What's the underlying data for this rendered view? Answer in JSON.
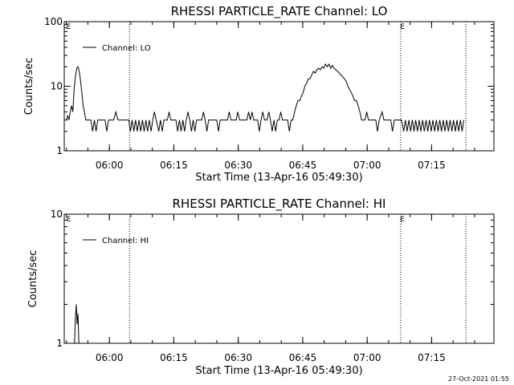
{
  "footer_timestamp": "27-Oct-2021 01:55",
  "chart_data": [
    {
      "type": "line",
      "title": "RHESSI PARTICLE_RATE Channel: LO",
      "xlabel": "Start Time (13-Apr-16 05:49:30)",
      "ylabel": "Counts/sec",
      "yscale": "log",
      "ylim": [
        1,
        100
      ],
      "yticks": [
        "1",
        "10",
        "100"
      ],
      "xlim_minutes": [
        0,
        100
      ],
      "xticks": [
        {
          "label": "06:00",
          "t": 10.5
        },
        {
          "label": "06:15",
          "t": 25.5
        },
        {
          "label": "06:30",
          "t": 40.5
        },
        {
          "label": "06:45",
          "t": 55.5
        },
        {
          "label": "07:00",
          "t": 70.5
        },
        {
          "label": "07:15",
          "t": 85.5
        }
      ],
      "eclipse_marks": [
        {
          "label": "E",
          "t": 0.3
        },
        {
          "label": "E",
          "t": 78.0
        }
      ],
      "dotted_lines_t": [
        15.2,
        78.3,
        93.5
      ],
      "legend": "Channel: LO",
      "series": [
        {
          "name": "Channel: LO",
          "points": [
            [
              0.5,
              3
            ],
            [
              0.8,
              3.5
            ],
            [
              1.1,
              3
            ],
            [
              1.4,
              4
            ],
            [
              1.7,
              5
            ],
            [
              2.0,
              4
            ],
            [
              2.3,
              9
            ],
            [
              2.6,
              14
            ],
            [
              2.9,
              19
            ],
            [
              3.2,
              20
            ],
            [
              3.5,
              17
            ],
            [
              3.8,
              12
            ],
            [
              4.1,
              8
            ],
            [
              4.4,
              5
            ],
            [
              4.7,
              4
            ],
            [
              5.0,
              3
            ],
            [
              5.6,
              3
            ],
            [
              6.2,
              3
            ],
            [
              6.6,
              2
            ],
            [
              7.0,
              3
            ],
            [
              7.4,
              2
            ],
            [
              7.8,
              3
            ],
            [
              9.5,
              3
            ],
            [
              9.9,
              2
            ],
            [
              10.3,
              3
            ],
            [
              11.5,
              3
            ],
            [
              12.0,
              4
            ],
            [
              12.5,
              3
            ],
            [
              15.0,
              3
            ],
            [
              15.4,
              2
            ],
            [
              15.8,
              3
            ],
            [
              16.2,
              2
            ],
            [
              16.6,
              3
            ],
            [
              17.0,
              2
            ],
            [
              17.4,
              3
            ],
            [
              17.8,
              2
            ],
            [
              18.2,
              3
            ],
            [
              18.6,
              2
            ],
            [
              19.0,
              3
            ],
            [
              19.4,
              2
            ],
            [
              19.8,
              3
            ],
            [
              20.2,
              2
            ],
            [
              20.6,
              3
            ],
            [
              21.0,
              4
            ],
            [
              21.4,
              3
            ],
            [
              22.0,
              2
            ],
            [
              22.4,
              3
            ],
            [
              22.8,
              2
            ],
            [
              23.2,
              3
            ],
            [
              24.0,
              3
            ],
            [
              24.4,
              4
            ],
            [
              24.8,
              3
            ],
            [
              26.0,
              3
            ],
            [
              26.4,
              2
            ],
            [
              26.8,
              3
            ],
            [
              27.2,
              2
            ],
            [
              27.6,
              3
            ],
            [
              28.0,
              2
            ],
            [
              28.4,
              3
            ],
            [
              28.8,
              4
            ],
            [
              29.2,
              3
            ],
            [
              29.6,
              2
            ],
            [
              30.0,
              3
            ],
            [
              30.4,
              2
            ],
            [
              30.8,
              3
            ],
            [
              32.0,
              3
            ],
            [
              32.4,
              4
            ],
            [
              32.8,
              3
            ],
            [
              33.2,
              2
            ],
            [
              33.6,
              3
            ],
            [
              35.5,
              3
            ],
            [
              35.9,
              2
            ],
            [
              36.3,
              3
            ],
            [
              38.0,
              3
            ],
            [
              38.4,
              4
            ],
            [
              38.8,
              3
            ],
            [
              40.0,
              3
            ],
            [
              40.4,
              4
            ],
            [
              40.8,
              3
            ],
            [
              42.5,
              3
            ],
            [
              42.9,
              4
            ],
            [
              43.3,
              3
            ],
            [
              43.7,
              4
            ],
            [
              44.1,
              3
            ],
            [
              45.0,
              3
            ],
            [
              45.4,
              2
            ],
            [
              45.8,
              3
            ],
            [
              46.2,
              4
            ],
            [
              46.6,
              3
            ],
            [
              47.2,
              3
            ],
            [
              47.6,
              4
            ],
            [
              48.0,
              3
            ],
            [
              48.4,
              2
            ],
            [
              48.8,
              3
            ],
            [
              49.2,
              2
            ],
            [
              49.6,
              3
            ],
            [
              50.0,
              3
            ],
            [
              50.4,
              4
            ],
            [
              50.8,
              3
            ],
            [
              52.0,
              3
            ],
            [
              52.4,
              2
            ],
            [
              52.8,
              3
            ],
            [
              53.2,
              3
            ],
            [
              53.6,
              4
            ],
            [
              54.0,
              5
            ],
            [
              54.4,
              6
            ],
            [
              54.8,
              6
            ],
            [
              55.2,
              7
            ],
            [
              55.6,
              8
            ],
            [
              56.0,
              10
            ],
            [
              56.4,
              11
            ],
            [
              56.8,
              13
            ],
            [
              57.2,
              13
            ],
            [
              57.6,
              15
            ],
            [
              58.0,
              17
            ],
            [
              58.4,
              16
            ],
            [
              58.8,
              18
            ],
            [
              59.2,
              19
            ],
            [
              59.6,
              18
            ],
            [
              60.0,
              20
            ],
            [
              60.4,
              19
            ],
            [
              60.8,
              22
            ],
            [
              61.2,
              20
            ],
            [
              61.6,
              22
            ],
            [
              62.0,
              19
            ],
            [
              62.4,
              21
            ],
            [
              62.8,
              19
            ],
            [
              63.2,
              18
            ],
            [
              63.6,
              17
            ],
            [
              64.0,
              16
            ],
            [
              64.4,
              15
            ],
            [
              64.8,
              14
            ],
            [
              65.2,
              13
            ],
            [
              65.6,
              12
            ],
            [
              66.0,
              10
            ],
            [
              66.4,
              9
            ],
            [
              66.8,
              8
            ],
            [
              67.2,
              7
            ],
            [
              67.6,
              6
            ],
            [
              68.0,
              6
            ],
            [
              68.4,
              5
            ],
            [
              68.8,
              4
            ],
            [
              69.2,
              3
            ],
            [
              70.0,
              3
            ],
            [
              70.4,
              4
            ],
            [
              70.8,
              3
            ],
            [
              72.5,
              3
            ],
            [
              72.9,
              2
            ],
            [
              73.3,
              3
            ],
            [
              74.0,
              4
            ],
            [
              74.4,
              3
            ],
            [
              76.0,
              3
            ],
            [
              76.4,
              2
            ],
            [
              76.8,
              3
            ],
            [
              78.5,
              3
            ],
            [
              79.0,
              2
            ],
            [
              79.4,
              3
            ],
            [
              79.8,
              2
            ],
            [
              80.2,
              3
            ],
            [
              80.6,
              2
            ],
            [
              81.0,
              3
            ],
            [
              81.4,
              2
            ],
            [
              81.8,
              3
            ],
            [
              82.2,
              2
            ],
            [
              82.6,
              3
            ],
            [
              83.0,
              2
            ],
            [
              83.4,
              3
            ],
            [
              83.8,
              2
            ],
            [
              84.2,
              3
            ],
            [
              84.6,
              2
            ],
            [
              85.0,
              3
            ],
            [
              85.4,
              2
            ],
            [
              85.8,
              3
            ],
            [
              86.2,
              2
            ],
            [
              86.6,
              3
            ],
            [
              87.0,
              2
            ],
            [
              87.4,
              3
            ],
            [
              87.8,
              2
            ],
            [
              88.2,
              3
            ],
            [
              88.6,
              2
            ],
            [
              89.0,
              3
            ],
            [
              89.4,
              2
            ],
            [
              89.8,
              3
            ],
            [
              90.2,
              2
            ],
            [
              90.6,
              3
            ],
            [
              91.0,
              2
            ],
            [
              91.4,
              3
            ],
            [
              91.8,
              2
            ],
            [
              92.2,
              3
            ],
            [
              92.6,
              2
            ],
            [
              93.0,
              3
            ]
          ]
        }
      ]
    },
    {
      "type": "line",
      "title": "RHESSI PARTICLE_RATE Channel: HI",
      "xlabel": "Start Time (13-Apr-16 05:49:30)",
      "ylabel": "Counts/sec",
      "yscale": "log",
      "ylim": [
        1,
        10
      ],
      "yticks": [
        "1",
        "10"
      ],
      "xlim_minutes": [
        0,
        100
      ],
      "xticks": [
        {
          "label": "06:00",
          "t": 10.5
        },
        {
          "label": "06:15",
          "t": 25.5
        },
        {
          "label": "06:30",
          "t": 40.5
        },
        {
          "label": "06:45",
          "t": 55.5
        },
        {
          "label": "07:00",
          "t": 70.5
        },
        {
          "label": "07:15",
          "t": 85.5
        }
      ],
      "eclipse_marks": [
        {
          "label": "E",
          "t": 0.3
        },
        {
          "label": "E",
          "t": 78.0
        }
      ],
      "dotted_lines_t": [
        15.2,
        78.3,
        93.5
      ],
      "legend": "Channel: HI",
      "series": [
        {
          "name": "Channel: HI",
          "points": [
            [
              2.4,
              1
            ],
            [
              2.6,
              1.6
            ],
            [
              2.8,
              2
            ],
            [
              3.0,
              1.4
            ],
            [
              3.2,
              1.7
            ],
            [
              3.4,
              1
            ]
          ]
        }
      ]
    }
  ]
}
